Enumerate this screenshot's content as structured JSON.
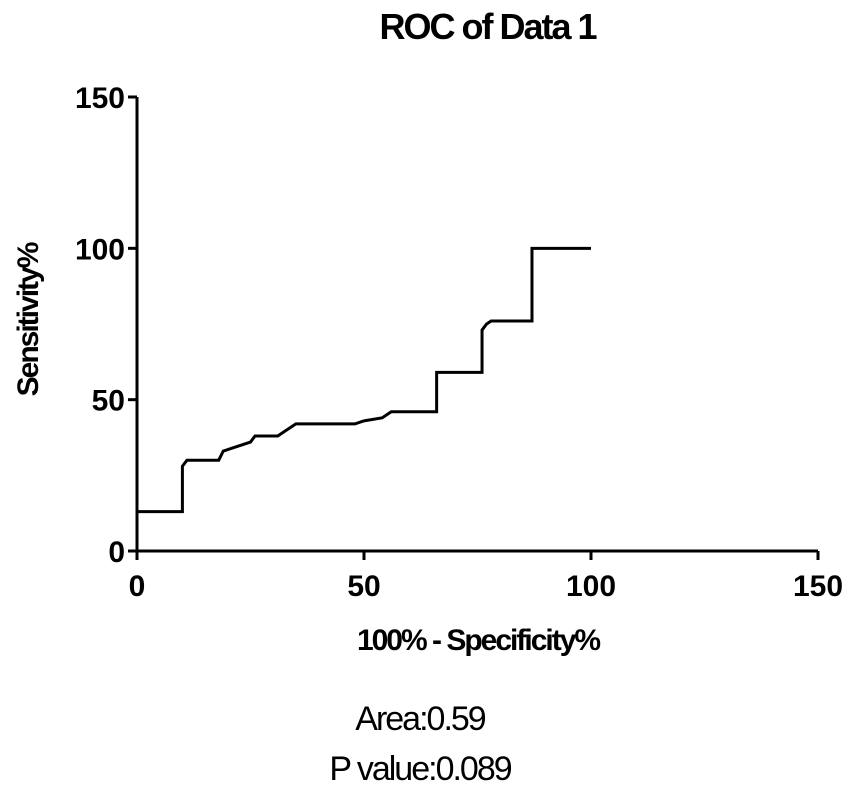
{
  "chart_data": {
    "type": "line",
    "title": "ROC of Data 1",
    "xlabel": "100% - Specificity%",
    "ylabel": "Sensitivity%",
    "xlim": [
      0,
      150
    ],
    "ylim": [
      0,
      150
    ],
    "xticks": [
      0,
      50,
      100,
      150
    ],
    "yticks": [
      0,
      50,
      100,
      150
    ],
    "grid": false,
    "step": true,
    "series": [
      {
        "x": [
          0,
          10,
          10,
          11,
          18,
          19,
          21,
          23,
          25,
          26,
          31,
          33,
          35,
          48,
          50,
          54,
          56,
          66,
          66,
          76,
          76,
          77,
          78,
          87,
          87,
          100
        ],
        "y": [
          13,
          13,
          28,
          30,
          30,
          33,
          34,
          35,
          36,
          38,
          38,
          40,
          42,
          42,
          43,
          44,
          46,
          46,
          59,
          59,
          73,
          75,
          76,
          76,
          100,
          100
        ]
      }
    ]
  },
  "stats": {
    "area": "Area:0.59",
    "p_value": "P value:0.089"
  }
}
